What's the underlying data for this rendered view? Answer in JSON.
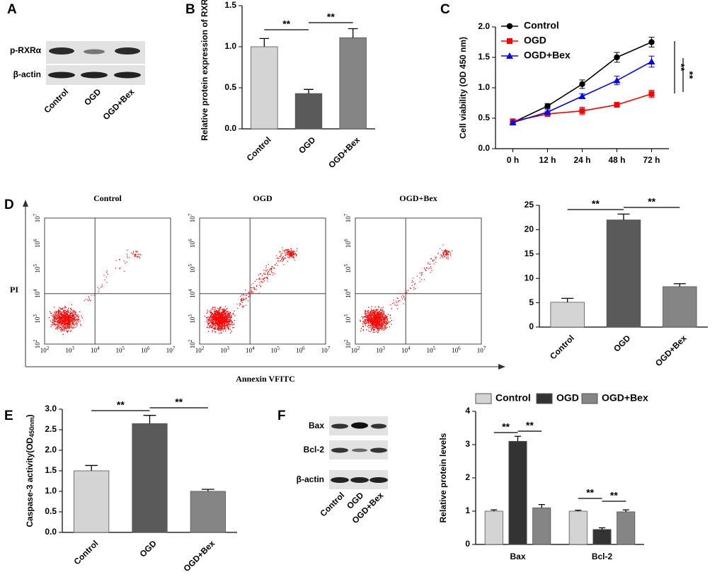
{
  "panel_labels": [
    "A",
    "B",
    "C",
    "D",
    "E",
    "F"
  ],
  "blot_a": {
    "rows": [
      "p-RXRα",
      "β-actin"
    ],
    "lanes": [
      "Control",
      "OGD",
      "OGD+Bex"
    ]
  },
  "blot_f": {
    "rows": [
      "Bax",
      "Bcl-2",
      "β-actin"
    ],
    "lanes": [
      "Control",
      "OGD",
      "OGD+Bex"
    ]
  },
  "flow": {
    "titles": [
      "Control",
      "OGD",
      "OGD+Bex"
    ],
    "y_label": "PI",
    "x_label": "Annexin VFITC",
    "tick_base": "10",
    "tick_exponents": [
      "2",
      "3",
      "4",
      "5",
      "6",
      "7"
    ]
  },
  "chart_data": [
    {
      "type": "bar",
      "y_label": "Relative protein expression of RXRα",
      "categories": [
        "Control",
        "OGD",
        "OGD+Bex"
      ],
      "values": [
        1.0,
        0.43,
        1.11
      ],
      "errors": [
        0.1,
        0.05,
        0.11
      ],
      "colors": [
        "#d4d4d4",
        "#5a5a5a",
        "#858585"
      ],
      "ylim": [
        0,
        1.5
      ],
      "yticks": [
        {
          "value": 0,
          "label": "0.0"
        },
        0.5,
        {
          "value": 1,
          "label": "1.0"
        },
        1.5
      ],
      "annotations": [
        "**",
        "**"
      ]
    },
    {
      "type": "line",
      "y_label": "Cell viability (OD 450 nm)",
      "categories": [
        "0 h",
        "12 h",
        "24 h",
        "48 h",
        "72 h"
      ],
      "series": [
        {
          "name": "Control",
          "color": "#000000",
          "marker": "circle",
          "values": [
            0.43,
            0.7,
            1.06,
            1.5,
            1.75
          ],
          "errors": [
            0.03,
            0.04,
            0.07,
            0.08,
            0.08
          ]
        },
        {
          "name": "OGD",
          "color": "#ff0000",
          "marker": "square",
          "values": [
            0.45,
            0.57,
            0.62,
            0.72,
            0.9
          ],
          "errors": [
            0.03,
            0.04,
            0.06,
            0.04,
            0.06
          ]
        },
        {
          "name": "OGD+Bex",
          "color": "#0000ff",
          "marker": "triangle",
          "values": [
            0.43,
            0.6,
            0.86,
            1.12,
            1.43
          ],
          "errors": [
            0.02,
            0.04,
            0.04,
            0.07,
            0.09
          ]
        }
      ],
      "ylim": [
        0,
        2
      ],
      "yticks": [
        {
          "value": 0,
          "label": "0.0"
        },
        0.5,
        {
          "value": 1,
          "label": "1.0"
        },
        1.5,
        {
          "value": 2,
          "label": "2.0"
        }
      ],
      "legend": "upper left",
      "annotations": [
        "**",
        "**"
      ]
    },
    {
      "type": "bar",
      "categories": [
        "Control",
        "OGD",
        "OGD+Bex"
      ],
      "values": [
        5.1,
        22.0,
        8.3
      ],
      "errors": [
        0.8,
        1.2,
        0.6
      ],
      "colors": [
        "#d4d4d4",
        "#5a5a5a",
        "#858585"
      ],
      "ylim": [
        0,
        25
      ],
      "yticks": [
        0,
        5,
        10,
        15,
        20,
        25
      ],
      "annotations": [
        "**",
        "**"
      ]
    },
    {
      "type": "bar",
      "y_label": "Caspase-3 activity(OD",
      "y_label_sub": "450nm",
      "y_label_end": ")",
      "categories": [
        "Control",
        "OGD",
        "OGD+Bex"
      ],
      "values": [
        1.5,
        2.65,
        1.0
      ],
      "errors": [
        0.13,
        0.2,
        0.05
      ],
      "colors": [
        "#d4d4d4",
        "#5a5a5a",
        "#858585"
      ],
      "ylim": [
        0,
        3
      ],
      "yticks": [
        {
          "value": 0,
          "label": "0.0"
        },
        0.5,
        {
          "value": 1,
          "label": "1.0"
        },
        1.5,
        {
          "value": 2,
          "label": "2.0"
        },
        2.5,
        {
          "value": 3,
          "label": "3.0"
        }
      ],
      "annotations": [
        "**",
        "**"
      ]
    },
    {
      "type": "bar",
      "y_label": "Relative protein levels",
      "categories": [
        "Bax",
        "Bcl-2"
      ],
      "series": [
        {
          "name": "Control",
          "color": "#d4d4d4",
          "values": [
            1.0,
            1.0
          ],
          "errors": [
            0.04,
            0.03
          ]
        },
        {
          "name": "OGD",
          "color": "#333333",
          "values": [
            3.1,
            0.45
          ],
          "errors": [
            0.15,
            0.05
          ]
        },
        {
          "name": "OGD+Bex",
          "color": "#858585",
          "values": [
            1.1,
            0.98
          ],
          "errors": [
            0.1,
            0.06
          ]
        }
      ],
      "ylim": [
        0,
        4
      ],
      "yticks": [
        0,
        1,
        2,
        3,
        4
      ],
      "legend": "top",
      "annotations": [
        "**",
        "**",
        "**",
        "**"
      ]
    }
  ]
}
